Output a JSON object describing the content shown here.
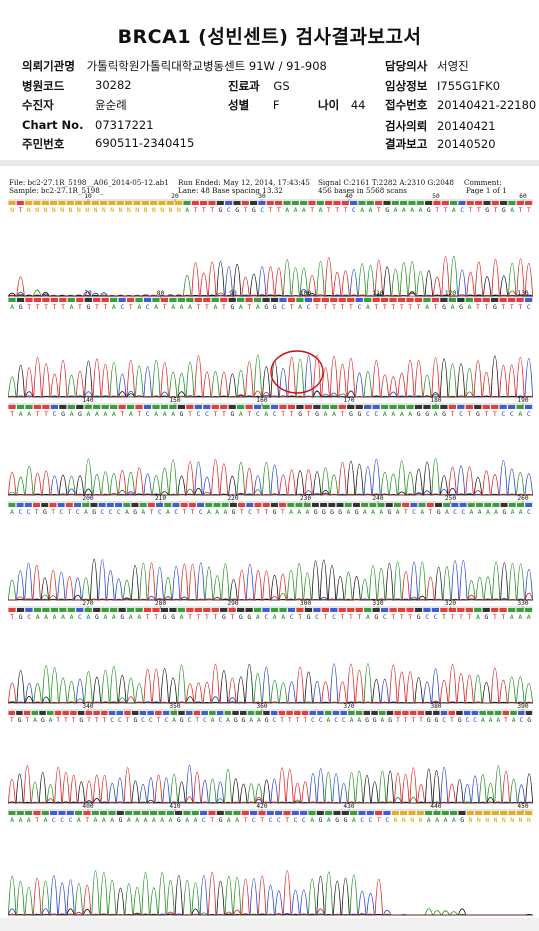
{
  "title": "BRCA1 (성빈센트) 검사결과보고서",
  "info": {
    "institution": {
      "label": "의뢰기관명",
      "value": "가톨릭학원가톨릭대학교병동센트 91W / 91-908"
    },
    "doctor": {
      "label": "담당의사",
      "value": "서영진"
    },
    "hospital_code": {
      "label": "병원코드",
      "value": "30282"
    },
    "department": {
      "label": "진료과",
      "value": "GS"
    },
    "clinical_info": {
      "label": "임상정보",
      "value": "I755G1FK0"
    },
    "patient": {
      "label": "수진자",
      "value": "윤순례"
    },
    "sex": {
      "label": "성별",
      "value": "F"
    },
    "age": {
      "label": "나이",
      "value": "44"
    },
    "receipt_no": {
      "label": "접수번호",
      "value": "20140421-22180"
    },
    "chart_no": {
      "label": "Chart No.",
      "value": "07317221"
    },
    "test_request": {
      "label": "검사의뢰",
      "value": "20140421"
    },
    "resident_no": {
      "label": "주민번호",
      "value": "690511-2340415"
    },
    "result_report": {
      "label": "결과보고",
      "value": "20140520"
    }
  },
  "trace_header": {
    "file": "File: bc2-27.1R_5198__A06_2014-05-12.ab1",
    "sample": "Sample: bc2-27.1R_5198_",
    "run_ended": "Run Ended: May 12, 2014, 17:43:45",
    "lane": "Lane: 48   Base spacing 13.32",
    "signal": "Signal C:2161 T:2282 A:2310 G:2048",
    "bases": "456 bases in 5568 scans",
    "comment": "Comment:",
    "page": "Page 1 of 1"
  },
  "colors": {
    "A": "#1a8c1a",
    "C": "#1f3fd0",
    "G": "#111111",
    "T": "#e01a1a",
    "N": "#e0a000",
    "circle": "#d01010"
  },
  "rows": [
    {
      "ticks": [
        10,
        20,
        30,
        40,
        50,
        60
      ],
      "seq": "NTNNNNNNNNNNNNNNNNNNNATTTGCGTGCTTAAATATTTCAATGAAAAGTTACTTGTGATT"
    },
    {
      "ticks": [
        70,
        80,
        90,
        100,
        110,
        120,
        130
      ],
      "seq": "AGTTTTTATGTTACTACATAAATTATGATAGGCTACTTTTTCATTTTTTATGAGATTGTTTC"
    },
    {
      "ticks": [
        140,
        150,
        160,
        170,
        180,
        190
      ],
      "seq": "TAATTCGAGAAAATATCAAAGTCCTTGATCACTTGTGAATGGCCAAAAGGAGTCTGTTCCAC"
    },
    {
      "ticks": [
        200,
        210,
        220,
        230,
        240,
        250,
        260
      ],
      "seq": "ACCTGTCTCAGCCCAGATCACTTCAAAGTCTTGTAAAGGGGAGAAAGATCATGACCAAAAGAAC"
    },
    {
      "ticks": [
        270,
        280,
        290,
        300,
        310,
        320,
        330
      ],
      "seq": "TGCAAAAACAGAAGAATTGGATTTTGTGGACAACTGCTCTTTAGCTTTGCCTTTTAGTTAAA"
    },
    {
      "ticks": [
        340,
        350,
        360,
        370,
        380,
        390
      ],
      "seq": "TGTAGATTTGTTTCCTGCCTCAGCTCACAGGAAGCTTTTCCACCAAGGAGTTTTGGCTGCCAAATACG"
    },
    {
      "ticks": [
        400,
        410,
        420,
        430,
        440,
        450
      ],
      "seq": "AAATACCCATAAAGAAAAAAGAACTGAATCTCCTCCAGAGGACCTCNNNNAAAAGNNNNNNNN"
    }
  ]
}
